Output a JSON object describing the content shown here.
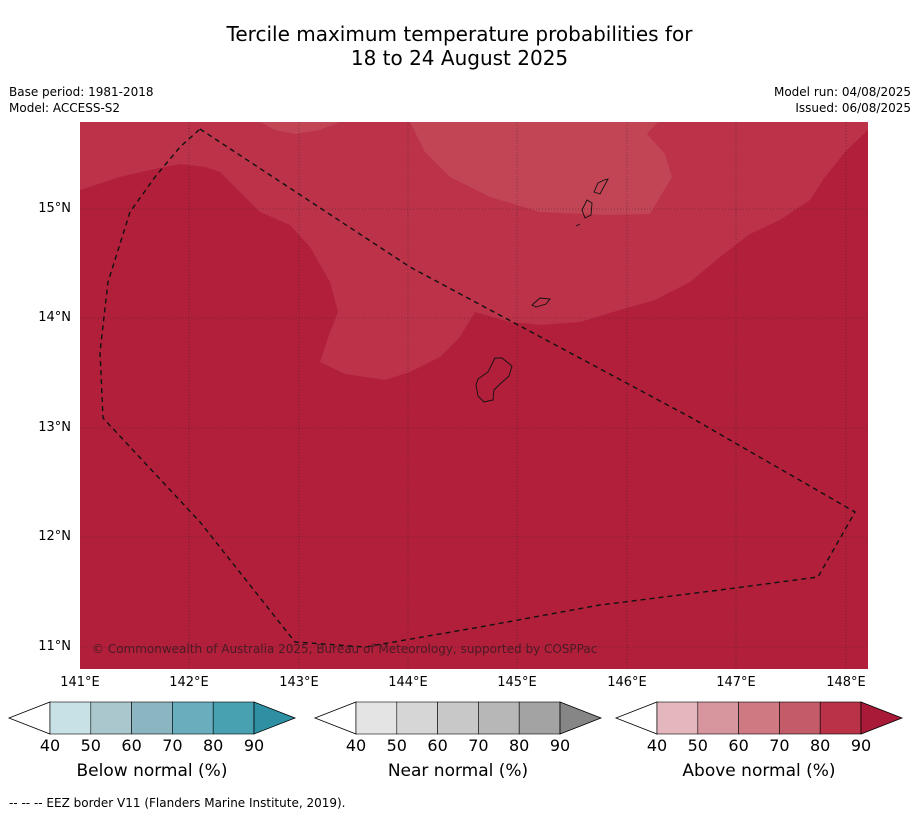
{
  "title_line1": "Tercile maximum temperature probabilities for",
  "title_line2": "18 to 24 August 2025",
  "base_period": "Base period: 1981-2018",
  "model": "Model: ACCESS-S2",
  "model_run": "Model run: 04/08/2025",
  "issued": "Issued: 06/08/2025",
  "map": {
    "lat_labels": [
      "15°N",
      "14°N",
      "13°N",
      "12°N",
      "11°N"
    ],
    "lon_labels": [
      "141°E",
      "142°E",
      "143°E",
      "144°E",
      "145°E",
      "146°E",
      "147°E",
      "148°E"
    ],
    "copyright": "© Commonwealth of Australia 2025, Bureau of Meteorology, supported by COSPPac",
    "colors": {
      "above_90": "#b11f3a",
      "above_80": "#bb3249",
      "above_70": "#c14554"
    }
  },
  "colorbars": [
    {
      "label": "Below normal (%)",
      "ticks": [
        "40",
        "50",
        "60",
        "70",
        "80",
        "90"
      ],
      "colors": [
        "#ffffff",
        "#c8e1e7",
        "#a9c7cc",
        "#8bb6c1",
        "#6aaebe",
        "#48a1b1",
        "#2f8fa3"
      ]
    },
    {
      "label": "Near normal (%)",
      "ticks": [
        "40",
        "50",
        "60",
        "70",
        "80",
        "90"
      ],
      "colors": [
        "#ffffff",
        "#e4e4e4",
        "#d6d6d6",
        "#c8c8c8",
        "#b7b7b7",
        "#a3a3a3",
        "#868686"
      ]
    },
    {
      "label": "Above normal (%)",
      "ticks": [
        "40",
        "50",
        "60",
        "70",
        "80",
        "90"
      ],
      "colors": [
        "#ffffff",
        "#e3b7bd",
        "#d7969e",
        "#cf7a82",
        "#c45b68",
        "#b93248",
        "#a91a38"
      ]
    }
  ],
  "footnote": "--  --  -- EEZ border V11 (Flanders Marine Institute, 2019)."
}
